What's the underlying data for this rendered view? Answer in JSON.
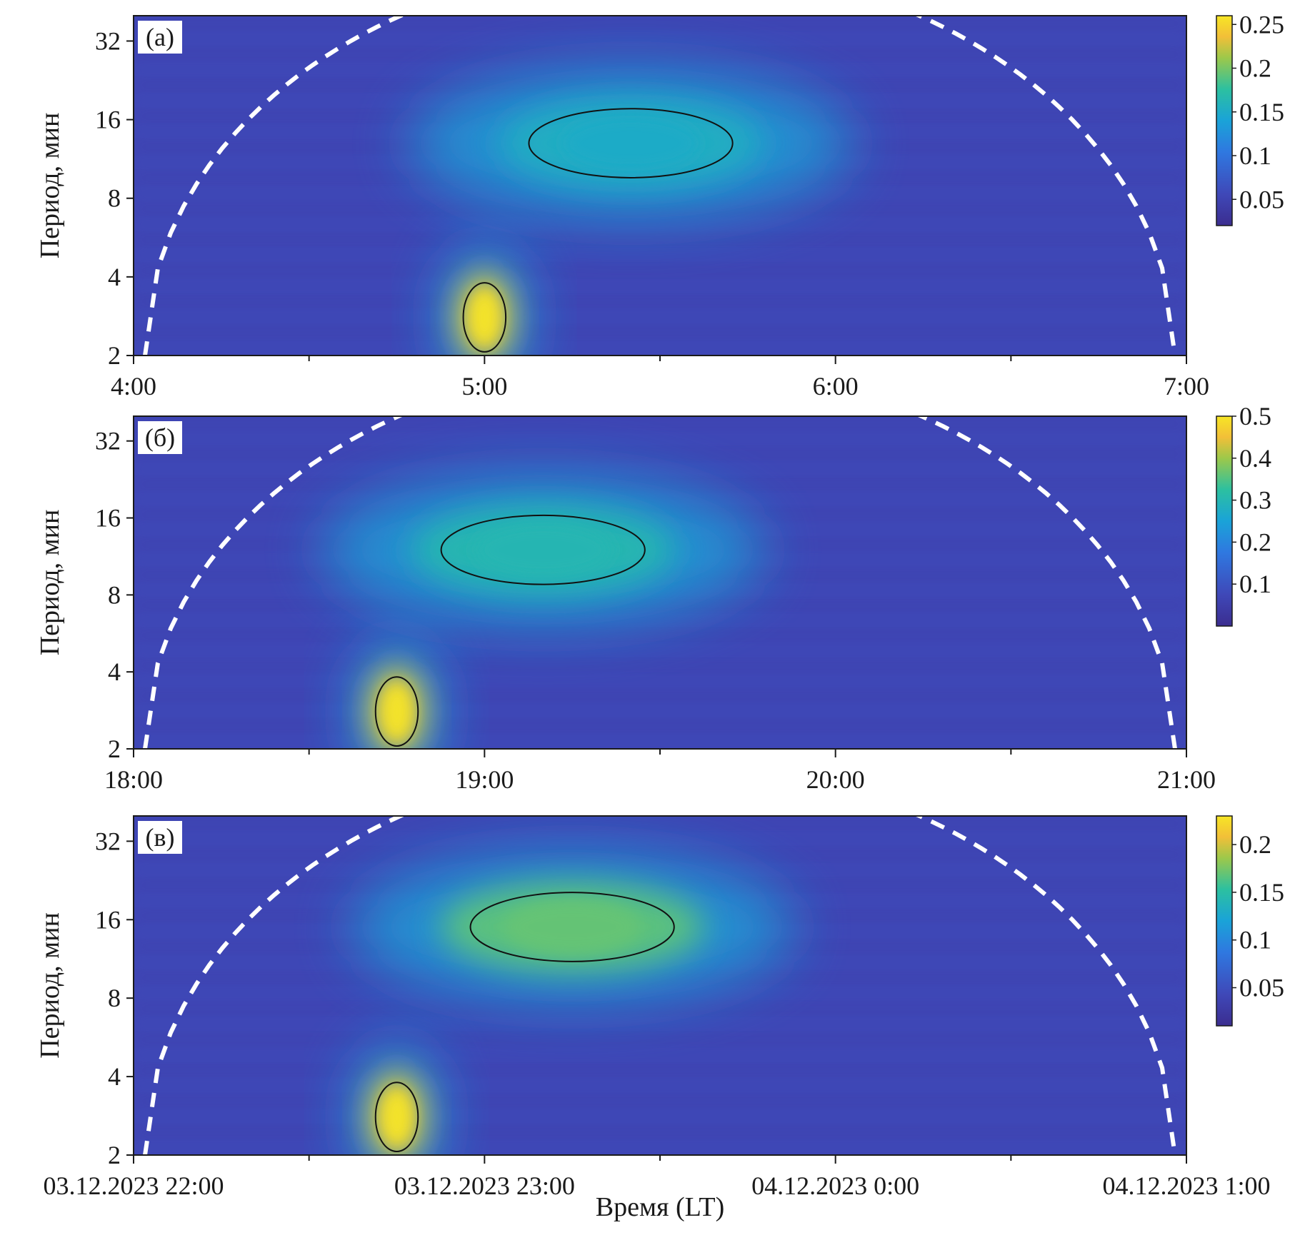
{
  "chart_data": [
    {
      "type": "heatmap",
      "panel_label": "(а)",
      "ylabel": "Период, мин",
      "y_ticks": [
        "2",
        "4",
        "8",
        "16",
        "32"
      ],
      "y_scale": "log2",
      "ylim": [
        2,
        40
      ],
      "x_ticks": [
        "4:00",
        "5:00",
        "6:00",
        "7:00"
      ],
      "xlim_hours": [
        4.0,
        7.0
      ],
      "colorbar": {
        "ticks": [
          "0.05",
          "0.1",
          "0.15",
          "0.2",
          "0.25"
        ],
        "range": [
          0.02,
          0.26
        ]
      },
      "peaks": [
        {
          "time": "5:00",
          "period_min": 2.8,
          "value": 0.26
        },
        {
          "time": "5:25",
          "period_min": 13,
          "value": 0.15
        }
      ],
      "cone_of_influence": true
    },
    {
      "type": "heatmap",
      "panel_label": "(б)",
      "ylabel": "Период, мин",
      "y_ticks": [
        "2",
        "4",
        "8",
        "16",
        "32"
      ],
      "y_scale": "log2",
      "ylim": [
        2,
        40
      ],
      "x_ticks": [
        "18:00",
        "19:00",
        "20:00",
        "21:00"
      ],
      "xlim_hours": [
        18.0,
        21.0
      ],
      "colorbar": {
        "ticks": [
          "0.1",
          "0.2",
          "0.3",
          "0.4",
          "0.5"
        ],
        "range": [
          0.0,
          0.5
        ]
      },
      "peaks": [
        {
          "time": "18:45",
          "period_min": 2.8,
          "value": 0.5
        },
        {
          "time": "19:10",
          "period_min": 12,
          "value": 0.3
        }
      ],
      "cone_of_influence": true
    },
    {
      "type": "heatmap",
      "panel_label": "(в)",
      "ylabel": "Период, мин",
      "xlabel": "Время (LT)",
      "y_ticks": [
        "2",
        "4",
        "8",
        "16",
        "32"
      ],
      "y_scale": "log2",
      "ylim": [
        2,
        40
      ],
      "x_ticks": [
        "03.12.2023 22:00",
        "03.12.2023 23:00",
        "04.12.2023 0:00",
        "04.12.2023 1:00"
      ],
      "xlim_hours": [
        22.0,
        25.0
      ],
      "colorbar": {
        "ticks": [
          "0.05",
          "0.1",
          "0.15",
          "0.2"
        ],
        "range": [
          0.01,
          0.23
        ]
      },
      "peaks": [
        {
          "time": "03.12.2023 22:45",
          "period_min": 2.8,
          "value": 0.23
        },
        {
          "time": "03.12.2023 23:15",
          "period_min": 15,
          "value": 0.17
        }
      ],
      "cone_of_influence": true
    }
  ]
}
